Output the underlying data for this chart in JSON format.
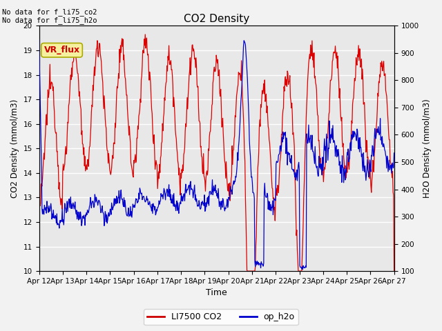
{
  "title": "CO2 Density",
  "xlabel": "Time",
  "ylabel_left": "CO2 Density (mmol/m3)",
  "ylabel_right": "H2O Density (mmol/m3)",
  "annotation_top": "No data for f_li75_co2\nNo data for f_li75_h2o",
  "vr_flux_label": "VR_flux",
  "legend_entries": [
    "LI7500 CO2",
    "op_h2o"
  ],
  "legend_colors": [
    "#cc0000",
    "#0000cc"
  ],
  "co2_ylim": [
    10.0,
    20.0
  ],
  "h2o_ylim": [
    100,
    1000
  ],
  "co2_yticks": [
    10.0,
    11.0,
    12.0,
    13.0,
    14.0,
    15.0,
    16.0,
    17.0,
    18.0,
    19.0,
    20.0
  ],
  "h2o_yticks": [
    100,
    200,
    300,
    400,
    500,
    600,
    700,
    800,
    900,
    1000
  ],
  "xtick_labels": [
    "Apr 12",
    "Apr 13",
    "Apr 14",
    "Apr 15",
    "Apr 16",
    "Apr 17",
    "Apr 18",
    "Apr 19",
    "Apr 20",
    "Apr 21",
    "Apr 22",
    "Apr 23",
    "Apr 24",
    "Apr 25",
    "Apr 26",
    "Apr 27"
  ],
  "plot_bg_color": "#e8e8e8",
  "grid_color": "#ffffff",
  "co2_color": "#dd0000",
  "h2o_color": "#0000cc",
  "fig_bg_color": "#f2f2f2",
  "linewidth": 0.9
}
